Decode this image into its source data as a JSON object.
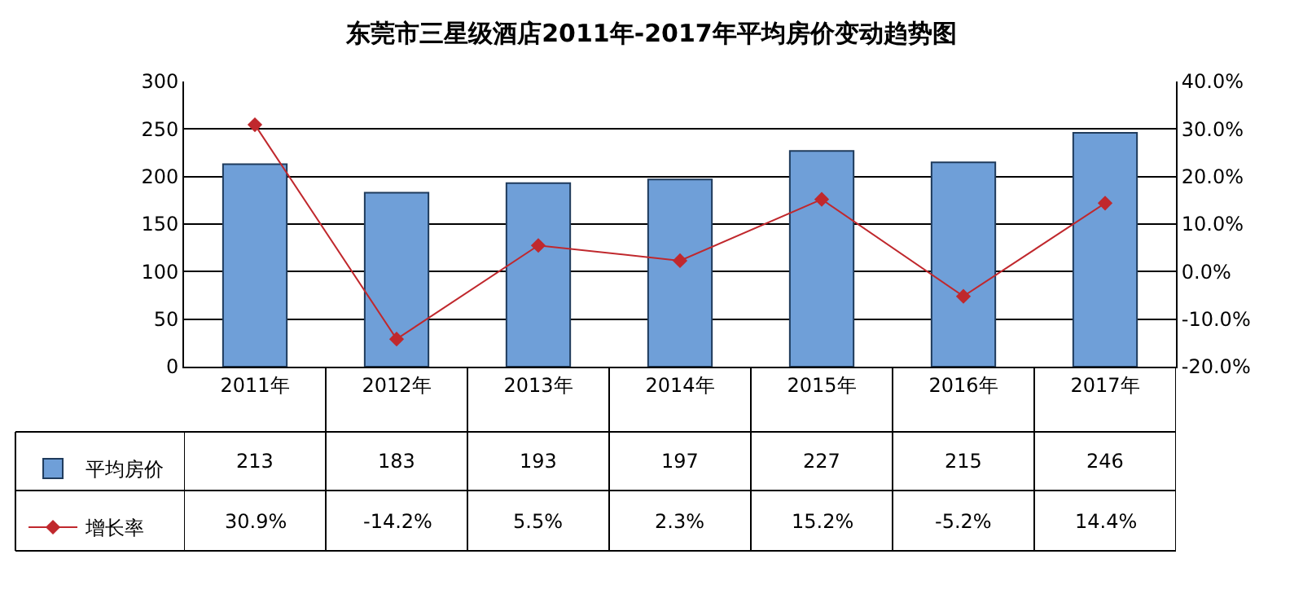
{
  "chart_data": {
    "type": "bar",
    "title": "东莞市三星级酒店2011年-2017年平均房价变动趋势图",
    "categories": [
      "2011年",
      "2012年",
      "2013年",
      "2014年",
      "2015年",
      "2016年",
      "2017年"
    ],
    "series": [
      {
        "name": "平均房价",
        "color": "#6f9fd8",
        "values": [
          213,
          183,
          193,
          197,
          227,
          215,
          246
        ],
        "value_labels": [
          "213",
          "183",
          "193",
          "197",
          "227",
          "215",
          "246"
        ]
      },
      {
        "name": "增长率",
        "type": "line",
        "axis": "y2",
        "color": "#c0282d",
        "marker": "diamond",
        "values": [
          30.9,
          -14.2,
          5.5,
          2.3,
          15.2,
          -5.2,
          14.4
        ],
        "value_labels": [
          "30.9%",
          "-14.2%",
          "5.5%",
          "2.3%",
          "15.2%",
          "-5.2%",
          "14.4%"
        ]
      }
    ],
    "ylim": [
      0,
      300
    ],
    "yticks": [
      0,
      50,
      100,
      150,
      200,
      250,
      300
    ],
    "y2lim": [
      -20,
      40
    ],
    "y2ticks": [
      {
        "value": -20,
        "label": "-20.0%"
      },
      {
        "value": -10,
        "label": "-10.0%"
      },
      {
        "value": 0,
        "label": "0.0%"
      },
      {
        "value": 10,
        "label": "10.0%"
      },
      {
        "value": 20,
        "label": "20.0%"
      },
      {
        "value": 30,
        "label": "30.0%"
      },
      {
        "value": 40,
        "label": "40.0%"
      }
    ],
    "grid": "y",
    "legend": "bottom left"
  }
}
